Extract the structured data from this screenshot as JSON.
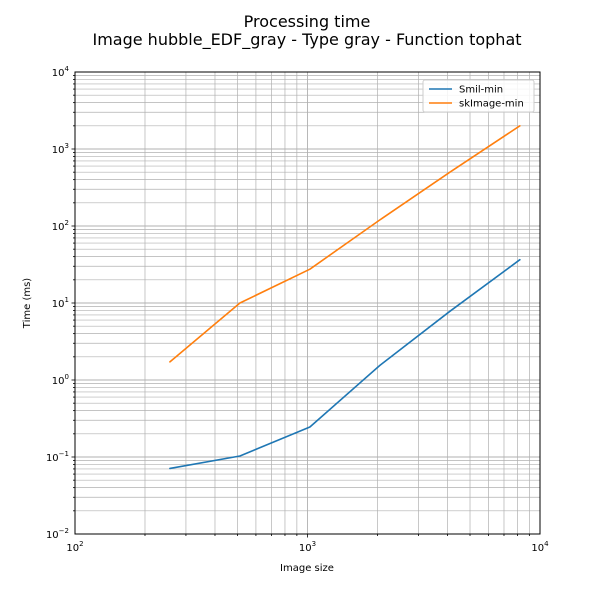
{
  "chart_data": {
    "type": "line",
    "title": "Processing time",
    "subtitle": "Image hubble_EDF_gray - Type gray - Function tophat",
    "xlabel": "Image size",
    "ylabel": "Time (ms)",
    "xscale": "log",
    "yscale": "log",
    "xlim": [
      100,
      10000
    ],
    "ylim": [
      0.01,
      10000
    ],
    "x_ticks": [
      {
        "base": "10",
        "exp": "2",
        "value": 100
      },
      {
        "base": "10",
        "exp": "3",
        "value": 1000
      },
      {
        "base": "10",
        "exp": "4",
        "value": 10000
      }
    ],
    "y_ticks": [
      {
        "base": "10",
        "exp": "−2",
        "value": 0.01
      },
      {
        "base": "10",
        "exp": "−1",
        "value": 0.1
      },
      {
        "base": "10",
        "exp": "0",
        "value": 1
      },
      {
        "base": "10",
        "exp": "1",
        "value": 10
      },
      {
        "base": "10",
        "exp": "2",
        "value": 100
      },
      {
        "base": "10",
        "exp": "3",
        "value": 1000
      },
      {
        "base": "10",
        "exp": "4",
        "value": 10000
      }
    ],
    "grid": "major and minor",
    "legend_position": "top-right",
    "x": [
      256,
      512,
      1024,
      2048,
      4096,
      8192
    ],
    "series": [
      {
        "name": "Smil-min",
        "color": "#1f77b4",
        "values": [
          0.071,
          0.103,
          0.245,
          1.55,
          7.8,
          36.5
        ]
      },
      {
        "name": "skImage-min",
        "color": "#ff7f0e",
        "values": [
          1.72,
          10.0,
          27.5,
          120,
          500,
          2000
        ]
      }
    ]
  }
}
